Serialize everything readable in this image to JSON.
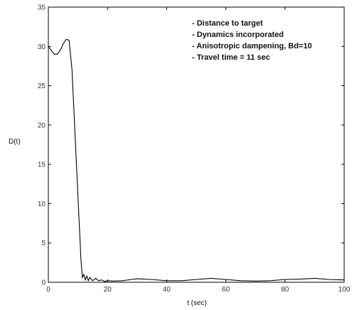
{
  "chart_data": {
    "type": "line",
    "title": "",
    "xlabel": "t (sec)",
    "ylabel": "D(t)",
    "xlim": [
      0,
      100
    ],
    "ylim": [
      0,
      35
    ],
    "xticks": [
      0,
      20,
      40,
      60,
      80,
      100
    ],
    "yticks": [
      0,
      5,
      10,
      15,
      20,
      25,
      30,
      35
    ],
    "grid": false,
    "line_color": "#000000",
    "annotations": [
      "- Distance to target",
      "- Dynamics incorporated",
      "- Anisotropic dampening, Bd=10",
      "- Travel time = 11 sec"
    ],
    "series": [
      {
        "x": [
          0,
          1,
          2,
          3,
          4,
          5,
          6,
          7,
          8,
          9,
          10,
          11,
          11.5,
          12,
          12.5,
          13,
          13.5,
          14,
          15,
          16,
          17,
          18,
          19,
          20,
          22,
          25,
          28,
          30,
          35,
          40,
          45,
          50,
          55,
          60,
          65,
          70,
          75,
          80,
          85,
          90,
          95,
          100
        ],
        "y": [
          30,
          29.5,
          29.0,
          29.0,
          29.5,
          30.3,
          30.9,
          30.8,
          27.0,
          19.0,
          11.0,
          3.0,
          0.6,
          1.0,
          0.3,
          0.8,
          0.2,
          0.6,
          0.2,
          0.5,
          0.2,
          0.3,
          0.1,
          0.2,
          0.15,
          0.2,
          0.35,
          0.45,
          0.35,
          0.2,
          0.2,
          0.35,
          0.5,
          0.35,
          0.2,
          0.15,
          0.2,
          0.35,
          0.4,
          0.5,
          0.35,
          0.3
        ]
      }
    ]
  }
}
